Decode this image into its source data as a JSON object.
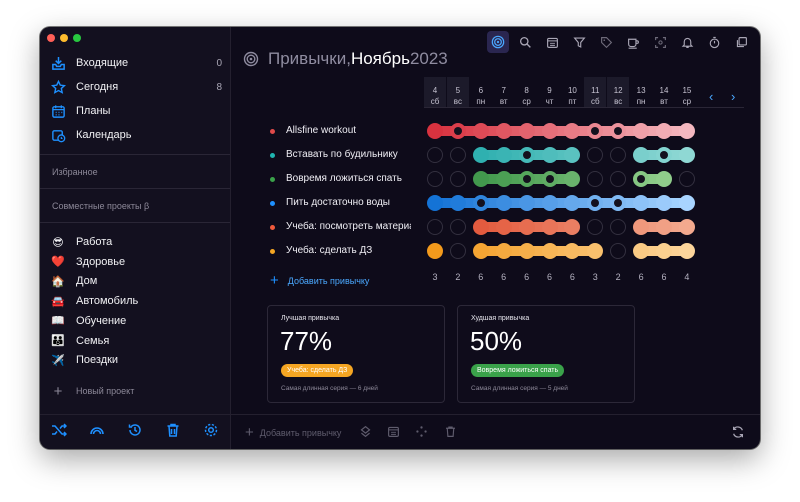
{
  "sidebar": {
    "inbox": {
      "label": "Входящие",
      "count": "0",
      "icon": "inbox-icon"
    },
    "today": {
      "label": "Сегодня",
      "count": "8",
      "icon": "star-icon"
    },
    "plans": {
      "label": "Планы",
      "icon": "calendar-grid-icon"
    },
    "calendar": {
      "label": "Календарь",
      "icon": "calendar-clock-icon"
    },
    "favorites_label": "Избранное",
    "shared_label": "Совместные проекты β",
    "projects": [
      {
        "emoji": "😎",
        "label": "Работа"
      },
      {
        "emoji": "❤️",
        "label": "Здоровье"
      },
      {
        "emoji": "🏠",
        "label": "Дом"
      },
      {
        "emoji": "🚘",
        "label": "Автомобиль"
      },
      {
        "emoji": "📖",
        "label": "Обучение"
      },
      {
        "emoji": "👪",
        "label": "Семья"
      },
      {
        "emoji": "✈️",
        "label": "Поездки"
      }
    ],
    "new_project": "Новый проект"
  },
  "header": {
    "title_main": "Привычки, ",
    "title_month": "Ноябрь",
    "title_year": " 2023"
  },
  "days": [
    {
      "num": "4",
      "wd": "сб",
      "weekend": true
    },
    {
      "num": "5",
      "wd": "вс",
      "weekend": true
    },
    {
      "num": "6",
      "wd": "пн"
    },
    {
      "num": "7",
      "wd": "вт"
    },
    {
      "num": "8",
      "wd": "ср"
    },
    {
      "num": "9",
      "wd": "чт"
    },
    {
      "num": "10",
      "wd": "пт"
    },
    {
      "num": "11",
      "wd": "сб",
      "weekend": true
    },
    {
      "num": "12",
      "wd": "вс",
      "weekend": true
    },
    {
      "num": "13",
      "wd": "пн"
    },
    {
      "num": "14",
      "wd": "вт"
    },
    {
      "num": "15",
      "wd": "ср"
    }
  ],
  "habits": [
    {
      "name": "Allsfine workout",
      "dot": "#e04a4a",
      "from": "#d8323f",
      "to": "#f4b8c0",
      "done": [
        1,
        1,
        1,
        1,
        1,
        1,
        1,
        1,
        1,
        1,
        1,
        1
      ],
      "marks": [
        0,
        1,
        0,
        0,
        0,
        0,
        0,
        1,
        1,
        0,
        0,
        0
      ]
    },
    {
      "name": "Вставать по будильнику",
      "dot": "#1fb5b0",
      "from": "#1aa7a8",
      "to": "#8fd8d4",
      "done": [
        0,
        0,
        1,
        1,
        1,
        1,
        1,
        0,
        0,
        1,
        1,
        1
      ],
      "marks": [
        0,
        0,
        0,
        0,
        1,
        0,
        0,
        0,
        0,
        0,
        1,
        0
      ]
    },
    {
      "name": "Вовремя ложиться спать",
      "dot": "#3aa24a",
      "from": "#2e8b3d",
      "to": "#9ad493",
      "done": [
        0,
        0,
        1,
        1,
        1,
        1,
        1,
        0,
        0,
        1,
        1,
        0
      ],
      "marks": [
        0,
        0,
        0,
        0,
        1,
        1,
        0,
        0,
        0,
        1,
        0,
        0
      ]
    },
    {
      "name": "Пить достаточно воды",
      "dot": "#1e90ff",
      "from": "#1473d6",
      "to": "#a8d4ff",
      "done": [
        1,
        1,
        1,
        1,
        1,
        1,
        1,
        1,
        1,
        1,
        1,
        1
      ],
      "marks": [
        0,
        0,
        1,
        0,
        0,
        0,
        0,
        1,
        1,
        0,
        0,
        0
      ]
    },
    {
      "name": "Учеба: посмотреть материал",
      "dot": "#f05a3c",
      "from": "#e04a2d",
      "to": "#f3a98e",
      "done": [
        0,
        0,
        1,
        1,
        1,
        1,
        1,
        0,
        0,
        1,
        1,
        1
      ],
      "marks": [
        0,
        0,
        0,
        0,
        0,
        0,
        0,
        0,
        0,
        0,
        0,
        0
      ]
    },
    {
      "name": "Учеба: сделать ДЗ",
      "dot": "#f5a623",
      "from": "#f39a1c",
      "to": "#fcd59b",
      "done": [
        1,
        0,
        1,
        1,
        1,
        1,
        1,
        1,
        0,
        1,
        1,
        1
      ],
      "marks": [
        0,
        0,
        0,
        0,
        0,
        0,
        0,
        0,
        0,
        0,
        0,
        0
      ]
    }
  ],
  "counts": [
    "3",
    "2",
    "6",
    "6",
    "6",
    "6",
    "6",
    "3",
    "2",
    "6",
    "6",
    "4"
  ],
  "add_habit": "Добавить привычку",
  "best": {
    "label": "Лучшая привычка",
    "pct": "77%",
    "tag": "Учеба: сделать ДЗ",
    "tag_color": "#f5a623",
    "streak": "Самая длинная серия — 6 дней"
  },
  "worst": {
    "label": "Худшая привычка",
    "pct": "50%",
    "tag": "Вовремя ложиться спать",
    "tag_color": "#3aa24a",
    "streak": "Самая длинная серия — 5 дней"
  },
  "footer": {
    "add_habit": "Добавить привычку"
  },
  "colors": {
    "accent": "#1e90ff",
    "window_bg": "#0e0b1a"
  }
}
